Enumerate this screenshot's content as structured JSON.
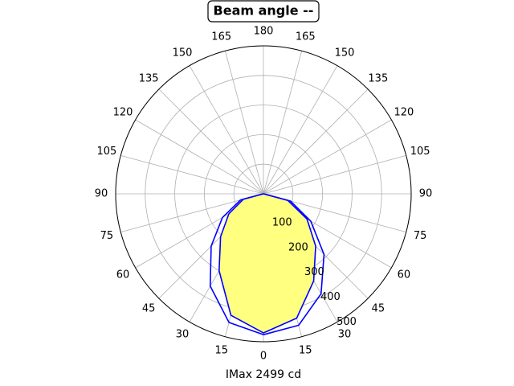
{
  "chart_data": {
    "type": "polar",
    "title": "Beam angle --",
    "xlabel": "IMax 2499 cd",
    "theta": [
      -90,
      -75,
      -60,
      -45,
      -30,
      -15,
      0,
      15,
      30,
      45,
      60,
      75,
      90
    ],
    "series": [
      {
        "color": "#0000ff",
        "values": [
          0,
          80,
          160,
          250,
          360,
          450,
          476,
          460,
          390,
          290,
          185,
          95,
          0
        ]
      },
      {
        "color": "#0000ff",
        "fill": "#ffff80",
        "values": [
          0,
          70,
          135,
          205,
          300,
          425,
          470,
          435,
          340,
          250,
          170,
          85,
          0
        ]
      }
    ],
    "rlim": [
      0,
      500
    ],
    "rticks": [
      100,
      200,
      300,
      400,
      500
    ],
    "thetaticks": [
      {
        "value": -165,
        "label": "165"
      },
      {
        "value": -150,
        "label": "150"
      },
      {
        "value": -135,
        "label": "135"
      },
      {
        "value": -120,
        "label": "120"
      },
      {
        "value": -105,
        "label": "105"
      },
      {
        "value": -90,
        "label": "90"
      },
      {
        "value": -75,
        "label": "75"
      },
      {
        "value": -60,
        "label": "60"
      },
      {
        "value": -45,
        "label": "45"
      },
      {
        "value": -30,
        "label": "30"
      },
      {
        "value": -15,
        "label": "15"
      },
      0,
      15,
      30,
      45,
      60,
      75,
      90,
      105,
      120,
      135,
      150,
      165,
      180
    ],
    "grid": true
  }
}
